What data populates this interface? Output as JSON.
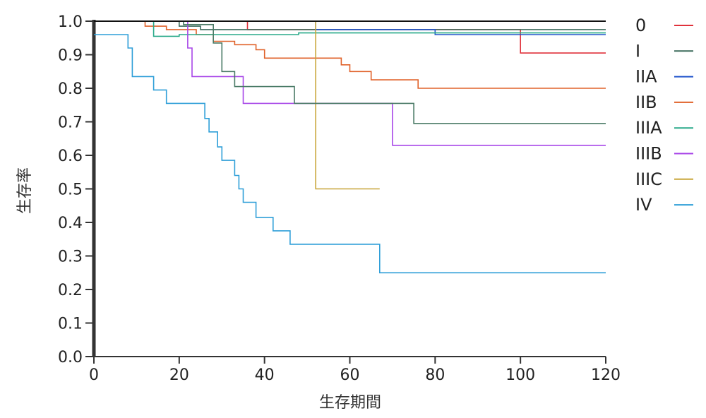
{
  "chart_data": {
    "type": "line",
    "title": "",
    "xlabel": "生存期間",
    "ylabel": "生存率",
    "xlim": [
      0,
      120
    ],
    "ylim": [
      0,
      1.0
    ],
    "x_ticks": [
      0,
      20,
      40,
      60,
      80,
      100,
      120
    ],
    "y_ticks": [
      0.0,
      0.1,
      0.2,
      0.3,
      0.4,
      0.5,
      0.6,
      0.7,
      0.8,
      0.9,
      1.0
    ],
    "x_tick_labels": [
      "0",
      "20",
      "40",
      "60",
      "80",
      "100",
      "120"
    ],
    "y_tick_labels": [
      "0.0",
      "0.1",
      "0.2",
      "0.3",
      "0.4",
      "0.5",
      "0.6",
      "0.7",
      "0.8",
      "0.9",
      "1.0"
    ],
    "legend_position": "right",
    "grid": false,
    "step": true,
    "series": [
      {
        "name": "0",
        "color": "#e0323c",
        "points": [
          [
            0,
            1.0
          ],
          [
            36,
            1.0
          ],
          [
            36,
            0.975
          ],
          [
            100,
            0.975
          ],
          [
            100,
            0.905
          ],
          [
            120,
            0.905
          ]
        ]
      },
      {
        "name": "I",
        "color": "#3d6b5c",
        "points": [
          [
            0,
            1.0
          ],
          [
            20,
            1.0
          ],
          [
            20,
            0.985
          ],
          [
            25,
            0.985
          ],
          [
            25,
            0.975
          ],
          [
            120,
            0.975
          ]
        ]
      },
      {
        "name": "IIA",
        "color": "#2255cc",
        "points": [
          [
            0,
            1.0
          ],
          [
            52,
            1.0
          ],
          [
            52,
            0.975
          ],
          [
            80,
            0.975
          ],
          [
            80,
            0.96
          ],
          [
            120,
            0.96
          ]
        ]
      },
      {
        "name": "IIB",
        "color": "#e0622a",
        "points": [
          [
            0,
            1.0
          ],
          [
            12,
            1.0
          ],
          [
            12,
            0.985
          ],
          [
            17,
            0.985
          ],
          [
            17,
            0.975
          ],
          [
            24,
            0.975
          ],
          [
            24,
            0.96
          ],
          [
            28,
            0.96
          ],
          [
            28,
            0.94
          ],
          [
            33,
            0.94
          ],
          [
            33,
            0.93
          ],
          [
            38,
            0.93
          ],
          [
            38,
            0.915
          ],
          [
            40,
            0.915
          ],
          [
            40,
            0.89
          ],
          [
            58,
            0.89
          ],
          [
            58,
            0.87
          ],
          [
            60,
            0.87
          ],
          [
            60,
            0.85
          ],
          [
            65,
            0.85
          ],
          [
            65,
            0.825
          ],
          [
            76,
            0.825
          ],
          [
            76,
            0.8
          ],
          [
            120,
            0.8
          ]
        ]
      },
      {
        "name": "IIIA",
        "color": "#2aaa8a",
        "points": [
          [
            0,
            1.0
          ],
          [
            14,
            1.0
          ],
          [
            14,
            0.955
          ],
          [
            20,
            0.955
          ],
          [
            20,
            0.96
          ],
          [
            48,
            0.96
          ],
          [
            48,
            0.965
          ],
          [
            120,
            0.965
          ]
        ]
      },
      {
        "name": "IIIB",
        "color": "#a846e8",
        "points": [
          [
            0,
            1.0
          ],
          [
            22,
            1.0
          ],
          [
            22,
            0.92
          ],
          [
            23,
            0.92
          ],
          [
            23,
            0.835
          ],
          [
            35,
            0.835
          ],
          [
            35,
            0.755
          ],
          [
            70,
            0.755
          ],
          [
            70,
            0.63
          ],
          [
            120,
            0.63
          ]
        ]
      },
      {
        "name": "IIIC",
        "color": "#c8a63a",
        "points": [
          [
            0,
            1.0
          ],
          [
            52,
            1.0
          ],
          [
            52,
            0.5
          ],
          [
            67,
            0.5
          ]
        ]
      },
      {
        "name": "IV",
        "color": "#2f9fd8",
        "points": [
          [
            0,
            0.96
          ],
          [
            8,
            0.96
          ],
          [
            8,
            0.92
          ],
          [
            9,
            0.92
          ],
          [
            9,
            0.835
          ],
          [
            14,
            0.835
          ],
          [
            14,
            0.795
          ],
          [
            17,
            0.795
          ],
          [
            17,
            0.755
          ],
          [
            26,
            0.755
          ],
          [
            26,
            0.71
          ],
          [
            27,
            0.71
          ],
          [
            27,
            0.67
          ],
          [
            29,
            0.67
          ],
          [
            29,
            0.625
          ],
          [
            30,
            0.625
          ],
          [
            30,
            0.585
          ],
          [
            33,
            0.585
          ],
          [
            33,
            0.54
          ],
          [
            34,
            0.54
          ],
          [
            34,
            0.5
          ],
          [
            35,
            0.5
          ],
          [
            35,
            0.46
          ],
          [
            38,
            0.46
          ],
          [
            38,
            0.415
          ],
          [
            42,
            0.415
          ],
          [
            42,
            0.375
          ],
          [
            46,
            0.375
          ],
          [
            46,
            0.335
          ],
          [
            67,
            0.335
          ],
          [
            67,
            0.25
          ],
          [
            120,
            0.25
          ]
        ]
      },
      {
        "name": "",
        "color": "#4a7a66",
        "points": [
          [
            0,
            1.0
          ],
          [
            21,
            1.0
          ],
          [
            21,
            0.99
          ],
          [
            28,
            0.99
          ],
          [
            28,
            0.935
          ],
          [
            30,
            0.935
          ],
          [
            30,
            0.85
          ],
          [
            33,
            0.85
          ],
          [
            33,
            0.805
          ],
          [
            47,
            0.805
          ],
          [
            47,
            0.755
          ],
          [
            75,
            0.755
          ],
          [
            75,
            0.695
          ],
          [
            120,
            0.695
          ]
        ]
      },
      {
        "name": "",
        "color": "#111111",
        "points": [
          [
            0,
            1.0
          ],
          [
            120,
            1.0
          ]
        ]
      }
    ]
  }
}
